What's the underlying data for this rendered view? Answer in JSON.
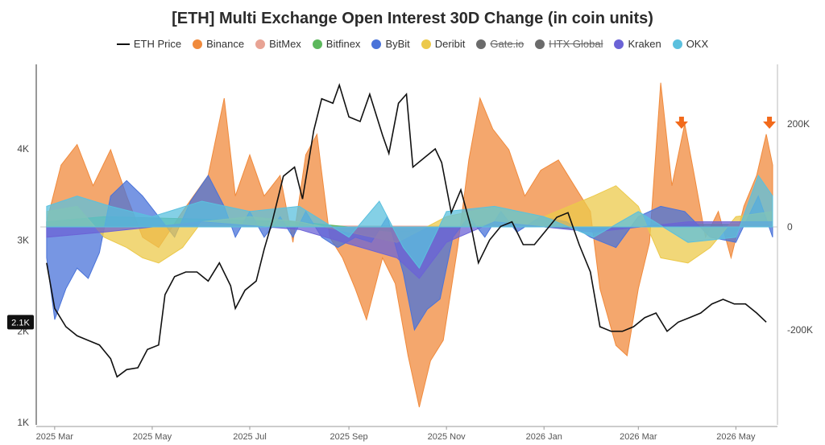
{
  "chart_data": {
    "type": "area",
    "title": "[ETH] Multi Exchange Open Interest 30D Change (in coin units)",
    "x_labels": [
      "2025 Mar",
      "2025 May",
      "2025 Jul",
      "2025 Sep",
      "2025 Nov",
      "2026 Jan",
      "2026 Mar",
      "2026 May"
    ],
    "left_axis": {
      "ticks": [
        "1K",
        "2K",
        "3K",
        "4K"
      ],
      "ylim": [
        1000,
        5000
      ],
      "current_value_label": "2.1K",
      "current_value": 2100
    },
    "right_axis": {
      "ticks": [
        "200K",
        "0",
        "-200K"
      ],
      "ylim": [
        -400000,
        300000
      ]
    },
    "legend_placement": "top-center",
    "grid": false,
    "eth_price": {
      "name": "ETH Price",
      "color": "#111111",
      "points": [
        [
          "2025-02-24",
          2750
        ],
        [
          "2025-03-01",
          2250
        ],
        [
          "2025-03-08",
          2050
        ],
        [
          "2025-03-15",
          1950
        ],
        [
          "2025-03-22",
          1900
        ],
        [
          "2025-03-29",
          1850
        ],
        [
          "2025-04-05",
          1700
        ],
        [
          "2025-04-09",
          1500
        ],
        [
          "2025-04-15",
          1580
        ],
        [
          "2025-04-22",
          1600
        ],
        [
          "2025-04-28",
          1800
        ],
        [
          "2025-05-05",
          1850
        ],
        [
          "2025-05-09",
          2400
        ],
        [
          "2025-05-15",
          2600
        ],
        [
          "2025-05-22",
          2650
        ],
        [
          "2025-05-29",
          2650
        ],
        [
          "2025-06-05",
          2550
        ],
        [
          "2025-06-12",
          2750
        ],
        [
          "2025-06-19",
          2500
        ],
        [
          "2025-06-22",
          2250
        ],
        [
          "2025-06-28",
          2450
        ],
        [
          "2025-07-05",
          2550
        ],
        [
          "2025-07-10",
          2900
        ],
        [
          "2025-07-15",
          3200
        ],
        [
          "2025-07-22",
          3700
        ],
        [
          "2025-07-29",
          3800
        ],
        [
          "2025-08-03",
          3450
        ],
        [
          "2025-08-10",
          4200
        ],
        [
          "2025-08-15",
          4550
        ],
        [
          "2025-08-22",
          4500
        ],
        [
          "2025-08-26",
          4700
        ],
        [
          "2025-09-01",
          4350
        ],
        [
          "2025-09-08",
          4300
        ],
        [
          "2025-09-14",
          4600
        ],
        [
          "2025-09-22",
          4150
        ],
        [
          "2025-09-26",
          3950
        ],
        [
          "2025-10-02",
          4500
        ],
        [
          "2025-10-07",
          4600
        ],
        [
          "2025-10-11",
          3800
        ],
        [
          "2025-10-18",
          3900
        ],
        [
          "2025-10-25",
          4000
        ],
        [
          "2025-10-29",
          3850
        ],
        [
          "2025-11-04",
          3300
        ],
        [
          "2025-11-10",
          3550
        ],
        [
          "2025-11-17",
          3100
        ],
        [
          "2025-11-21",
          2750
        ],
        [
          "2025-11-28",
          3000
        ],
        [
          "2025-12-05",
          3150
        ],
        [
          "2025-12-12",
          3200
        ],
        [
          "2025-12-19",
          2950
        ],
        [
          "2025-12-26",
          2950
        ],
        [
          "2026-01-02",
          3100
        ],
        [
          "2026-01-09",
          3250
        ],
        [
          "2026-01-16",
          3300
        ],
        [
          "2026-01-23",
          2950
        ],
        [
          "2026-01-30",
          2650
        ],
        [
          "2026-02-05",
          2050
        ],
        [
          "2026-02-12",
          2000
        ],
        [
          "2026-02-19",
          2000
        ],
        [
          "2026-02-26",
          2050
        ],
        [
          "2026-03-05",
          2150
        ],
        [
          "2026-03-12",
          2200
        ],
        [
          "2026-03-19",
          2000
        ],
        [
          "2026-03-26",
          2100
        ],
        [
          "2026-04-02",
          2150
        ],
        [
          "2026-04-09",
          2200
        ],
        [
          "2026-04-16",
          2300
        ],
        [
          "2026-04-23",
          2350
        ],
        [
          "2026-04-30",
          2300
        ],
        [
          "2026-05-07",
          2300
        ],
        [
          "2026-05-14",
          2200
        ],
        [
          "2026-05-20",
          2100
        ]
      ]
    },
    "series": [
      {
        "name": "Binance",
        "color": "#f08a3c",
        "visible": true,
        "points": [
          [
            "2025-02-24",
            10000
          ],
          [
            "2025-03-05",
            120000
          ],
          [
            "2025-03-15",
            160000
          ],
          [
            "2025-03-25",
            80000
          ],
          [
            "2025-04-05",
            150000
          ],
          [
            "2025-04-15",
            60000
          ],
          [
            "2025-04-25",
            -20000
          ],
          [
            "2025-05-05",
            -40000
          ],
          [
            "2025-05-20",
            30000
          ],
          [
            "2025-06-05",
            100000
          ],
          [
            "2025-06-15",
            250000
          ],
          [
            "2025-06-22",
            60000
          ],
          [
            "2025-07-01",
            140000
          ],
          [
            "2025-07-10",
            60000
          ],
          [
            "2025-07-20",
            100000
          ],
          [
            "2025-07-28",
            -30000
          ],
          [
            "2025-08-05",
            140000
          ],
          [
            "2025-08-12",
            180000
          ],
          [
            "2025-08-20",
            -20000
          ],
          [
            "2025-08-28",
            -60000
          ],
          [
            "2025-09-05",
            -120000
          ],
          [
            "2025-09-12",
            -180000
          ],
          [
            "2025-09-22",
            -60000
          ],
          [
            "2025-09-30",
            -110000
          ],
          [
            "2025-10-08",
            -250000
          ],
          [
            "2025-10-15",
            -350000
          ],
          [
            "2025-10-22",
            -260000
          ],
          [
            "2025-10-30",
            -220000
          ],
          [
            "2025-11-08",
            -40000
          ],
          [
            "2025-11-15",
            130000
          ],
          [
            "2025-11-22",
            250000
          ],
          [
            "2025-11-30",
            190000
          ],
          [
            "2025-12-10",
            150000
          ],
          [
            "2025-12-20",
            60000
          ],
          [
            "2025-12-30",
            110000
          ],
          [
            "2026-01-10",
            130000
          ],
          [
            "2026-01-20",
            80000
          ],
          [
            "2026-01-30",
            30000
          ],
          [
            "2026-02-05",
            -120000
          ],
          [
            "2026-02-15",
            -230000
          ],
          [
            "2026-02-22",
            -250000
          ],
          [
            "2026-03-01",
            -120000
          ],
          [
            "2026-03-08",
            -30000
          ],
          [
            "2026-03-15",
            280000
          ],
          [
            "2026-03-22",
            80000
          ],
          [
            "2026-03-30",
            200000
          ],
          [
            "2026-04-05",
            100000
          ],
          [
            "2026-04-12",
            -20000
          ],
          [
            "2026-04-20",
            30000
          ],
          [
            "2026-04-28",
            -60000
          ],
          [
            "2026-05-06",
            40000
          ],
          [
            "2026-05-14",
            100000
          ],
          [
            "2026-05-20",
            180000
          ],
          [
            "2026-05-24",
            120000
          ]
        ]
      },
      {
        "name": "BitMex",
        "color": "#e8a394",
        "visible": true,
        "points": [
          [
            "2025-02-24",
            0
          ],
          [
            "2025-08-01",
            2000
          ],
          [
            "2026-05-24",
            0
          ]
        ]
      },
      {
        "name": "Bitfinex",
        "color": "#5cb85c",
        "visible": true,
        "points": [
          [
            "2025-02-24",
            10000
          ],
          [
            "2025-04-01",
            20000
          ],
          [
            "2025-06-01",
            15000
          ],
          [
            "2025-08-01",
            10000
          ],
          [
            "2025-10-01",
            -10000
          ],
          [
            "2025-12-01",
            5000
          ],
          [
            "2026-02-01",
            -5000
          ],
          [
            "2026-04-01",
            5000
          ],
          [
            "2026-05-24",
            5000
          ]
        ]
      },
      {
        "name": "ByBit",
        "color": "#4a73d9",
        "visible": true,
        "points": [
          [
            "2025-02-24",
            -60000
          ],
          [
            "2025-03-01",
            -180000
          ],
          [
            "2025-03-08",
            -120000
          ],
          [
            "2025-03-15",
            -80000
          ],
          [
            "2025-03-22",
            -100000
          ],
          [
            "2025-03-29",
            -50000
          ],
          [
            "2025-04-05",
            60000
          ],
          [
            "2025-04-15",
            90000
          ],
          [
            "2025-04-25",
            60000
          ],
          [
            "2025-05-05",
            20000
          ],
          [
            "2025-05-15",
            -20000
          ],
          [
            "2025-05-25",
            50000
          ],
          [
            "2025-06-05",
            100000
          ],
          [
            "2025-06-15",
            40000
          ],
          [
            "2025-06-22",
            -20000
          ],
          [
            "2025-07-01",
            30000
          ],
          [
            "2025-07-10",
            -20000
          ],
          [
            "2025-07-20",
            20000
          ],
          [
            "2025-07-28",
            -20000
          ],
          [
            "2025-08-05",
            30000
          ],
          [
            "2025-08-15",
            -20000
          ],
          [
            "2025-08-25",
            -40000
          ],
          [
            "2025-09-05",
            -20000
          ],
          [
            "2025-09-15",
            -30000
          ],
          [
            "2025-09-25",
            20000
          ],
          [
            "2025-10-05",
            -90000
          ],
          [
            "2025-10-12",
            -200000
          ],
          [
            "2025-10-20",
            -160000
          ],
          [
            "2025-10-28",
            -140000
          ],
          [
            "2025-11-05",
            -20000
          ],
          [
            "2025-11-15",
            20000
          ],
          [
            "2025-11-25",
            -20000
          ],
          [
            "2025-12-05",
            30000
          ],
          [
            "2025-12-15",
            -10000
          ],
          [
            "2025-12-30",
            20000
          ],
          [
            "2026-01-15",
            10000
          ],
          [
            "2026-01-30",
            -20000
          ],
          [
            "2026-02-15",
            -40000
          ],
          [
            "2026-03-01",
            20000
          ],
          [
            "2026-03-15",
            40000
          ],
          [
            "2026-03-30",
            30000
          ],
          [
            "2026-04-15",
            -20000
          ],
          [
            "2026-05-01",
            -30000
          ],
          [
            "2026-05-15",
            60000
          ],
          [
            "2026-05-24",
            -20000
          ]
        ]
      },
      {
        "name": "Deribit",
        "color": "#ecc94b",
        "visible": true,
        "points": [
          [
            "2025-02-24",
            30000
          ],
          [
            "2025-03-15",
            40000
          ],
          [
            "2025-04-01",
            -20000
          ],
          [
            "2025-04-15",
            -40000
          ],
          [
            "2025-04-25",
            -60000
          ],
          [
            "2025-05-05",
            -70000
          ],
          [
            "2025-05-20",
            -40000
          ],
          [
            "2025-06-01",
            10000
          ],
          [
            "2025-07-01",
            20000
          ],
          [
            "2025-08-01",
            10000
          ],
          [
            "2025-09-01",
            -10000
          ],
          [
            "2025-10-01",
            -30000
          ],
          [
            "2025-11-01",
            20000
          ],
          [
            "2025-12-01",
            40000
          ],
          [
            "2026-01-01",
            20000
          ],
          [
            "2026-02-01",
            60000
          ],
          [
            "2026-02-15",
            80000
          ],
          [
            "2026-03-01",
            40000
          ],
          [
            "2026-03-15",
            -60000
          ],
          [
            "2026-04-01",
            -70000
          ],
          [
            "2026-04-15",
            -40000
          ],
          [
            "2026-05-01",
            20000
          ],
          [
            "2026-05-24",
            30000
          ]
        ]
      },
      {
        "name": "Gate.io",
        "color": "#6b6b6b",
        "visible": false,
        "points": []
      },
      {
        "name": "HTX Global",
        "color": "#6b6b6b",
        "visible": false,
        "points": []
      },
      {
        "name": "Kraken",
        "color": "#6b63d6",
        "visible": true,
        "points": [
          [
            "2025-02-24",
            -20000
          ],
          [
            "2025-04-01",
            -10000
          ],
          [
            "2025-06-01",
            10000
          ],
          [
            "2025-08-01",
            -5000
          ],
          [
            "2025-10-01",
            -60000
          ],
          [
            "2025-10-15",
            -100000
          ],
          [
            "2025-11-01",
            -30000
          ],
          [
            "2025-12-01",
            10000
          ],
          [
            "2026-02-01",
            -10000
          ],
          [
            "2026-04-01",
            10000
          ],
          [
            "2026-05-24",
            10000
          ]
        ]
      },
      {
        "name": "OKX",
        "color": "#5bc0de",
        "visible": true,
        "points": [
          [
            "2025-02-24",
            40000
          ],
          [
            "2025-03-15",
            60000
          ],
          [
            "2025-04-05",
            40000
          ],
          [
            "2025-05-01",
            20000
          ],
          [
            "2025-06-01",
            50000
          ],
          [
            "2025-07-01",
            30000
          ],
          [
            "2025-08-01",
            40000
          ],
          [
            "2025-09-01",
            -20000
          ],
          [
            "2025-09-20",
            50000
          ],
          [
            "2025-10-05",
            -40000
          ],
          [
            "2025-10-15",
            -80000
          ],
          [
            "2025-11-01",
            30000
          ],
          [
            "2025-12-01",
            40000
          ],
          [
            "2026-01-01",
            20000
          ],
          [
            "2026-02-01",
            -20000
          ],
          [
            "2026-03-01",
            30000
          ],
          [
            "2026-04-01",
            -30000
          ],
          [
            "2026-05-01",
            -20000
          ],
          [
            "2026-05-15",
            100000
          ],
          [
            "2026-05-24",
            60000
          ]
        ]
      }
    ],
    "markers": [
      {
        "date": "2026-03-28",
        "color": "#f26a1b"
      },
      {
        "date": "2026-05-22",
        "color": "#f26a1b"
      }
    ]
  }
}
